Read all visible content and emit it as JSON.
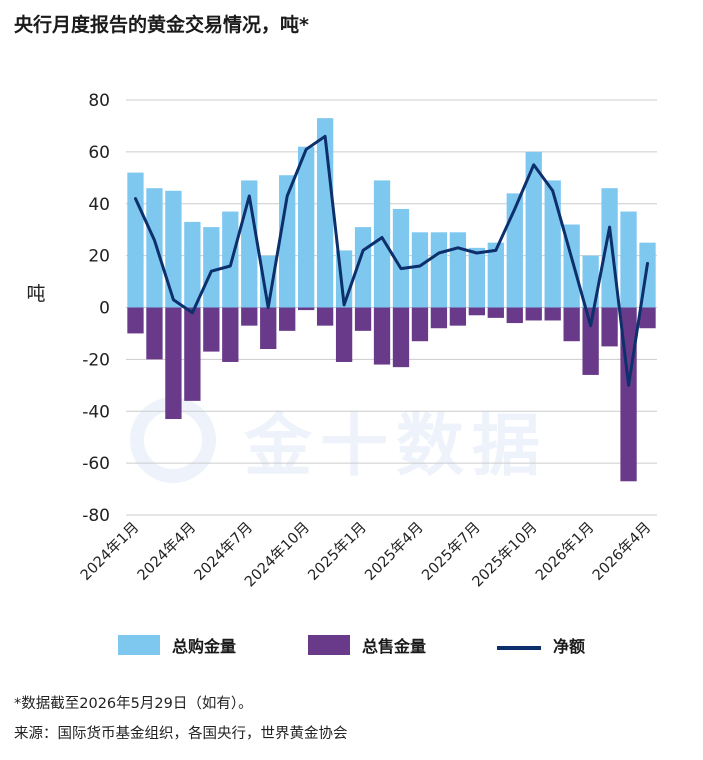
{
  "header": {
    "title": "央行月度报告的黄金交易情况，吨*"
  },
  "legend": {
    "buy": "总购金量",
    "sell": "总售金量",
    "net": "净额"
  },
  "notes": {
    "footnote": "*数据截至2026年5月29日（如有）。",
    "source": "来源：国际货币基金组织，各国央行，世界黄金协会"
  },
  "watermark": {
    "text": "金十数据"
  },
  "colors": {
    "buy": "#7ec8f0",
    "sell": "#6a3a8a",
    "net": "#0d2f6b",
    "grid": "#cccccc"
  },
  "chart_data": {
    "type": "bar",
    "ylabel": "吨",
    "ylim": [
      -80,
      80
    ],
    "yticks": [
      80,
      60,
      40,
      20,
      0,
      -20,
      -40,
      -60,
      -80
    ],
    "x_tick_labels": [
      "2024年1月",
      "2024年4月",
      "2024年7月",
      "2024年10月",
      "2025年1月",
      "2025年4月",
      "2025年7月",
      "2025年10月",
      "2026年1月",
      "2026年4月"
    ],
    "categories": [
      "2024-01",
      "2024-02",
      "2024-03",
      "2024-04",
      "2024-05",
      "2024-06",
      "2024-07",
      "2024-08",
      "2024-09",
      "2024-10",
      "2024-11",
      "2024-12",
      "2025-01",
      "2025-02",
      "2025-03",
      "2025-04",
      "2025-05",
      "2025-06",
      "2025-07",
      "2025-08",
      "2025-09",
      "2025-10",
      "2025-11",
      "2025-12",
      "2026-01",
      "2026-02",
      "2026-03",
      "2026-04"
    ],
    "series": [
      {
        "name": "总购金量",
        "kind": "bar",
        "values": [
          52,
          46,
          45,
          33,
          31,
          37,
          49,
          20,
          51,
          62,
          73,
          22,
          31,
          49,
          38,
          29,
          29,
          29,
          23,
          25,
          44,
          60,
          49,
          32,
          20,
          46,
          37,
          25
        ]
      },
      {
        "name": "总售金量",
        "kind": "bar",
        "values": [
          -10,
          -20,
          -43,
          -36,
          -17,
          -21,
          -7,
          -16,
          -9,
          -1,
          -7,
          -21,
          -9,
          -22,
          -23,
          -13,
          -8,
          -7,
          -3,
          -4,
          -6,
          -5,
          -5,
          -13,
          -26,
          -15,
          -67,
          -8
        ]
      },
      {
        "name": "净额",
        "kind": "line",
        "values": [
          42,
          26,
          3,
          -2,
          14,
          16,
          43,
          0,
          43,
          61,
          66,
          1,
          22,
          27,
          15,
          16,
          21,
          23,
          21,
          22,
          38,
          55,
          45,
          19,
          -7,
          31,
          -30,
          17
        ]
      }
    ]
  }
}
